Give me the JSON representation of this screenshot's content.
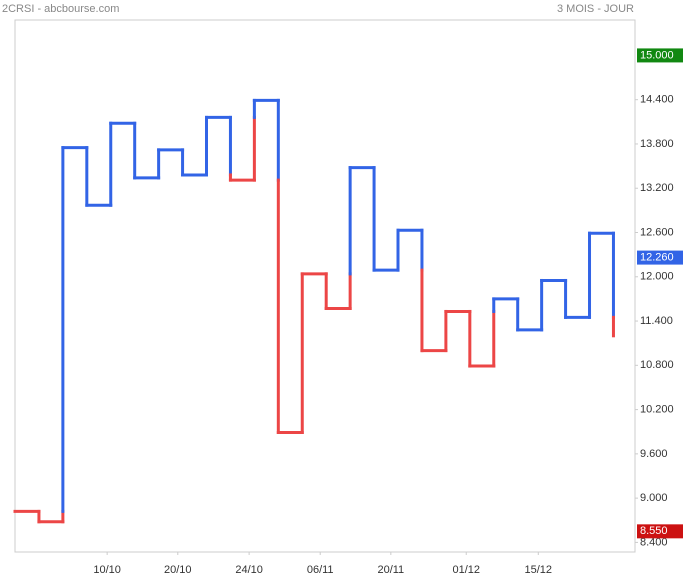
{
  "chart_data": {
    "type": "kagi",
    "title": "2CRSI - abcbourse.com",
    "subtitle": "3 MOIS - JOUR",
    "values": [
      8.82,
      8.68,
      13.75,
      12.97,
      14.08,
      13.34,
      13.72,
      13.38,
      14.16,
      13.31,
      14.39,
      9.89,
      12.04,
      11.57,
      13.48,
      12.09,
      12.63,
      11.0,
      11.53,
      10.79,
      11.7,
      11.28,
      11.95,
      11.45,
      12.59,
      11.2
    ],
    "start_state": "yin",
    "colors": {
      "yang": "#3264e6",
      "yin": "#ec4646"
    },
    "ylim": [
      8.27,
      15.48
    ],
    "yticks": [
      {
        "value": 8.4,
        "label": "8.400"
      },
      {
        "value": 9,
        "label": "9.000"
      },
      {
        "value": 9.6,
        "label": "9.600"
      },
      {
        "value": 10.2,
        "label": "10.200"
      },
      {
        "value": 10.8,
        "label": "10.800"
      },
      {
        "value": 11.4,
        "label": "11.400"
      },
      {
        "value": 12,
        "label": "12.000"
      },
      {
        "value": 12.6,
        "label": "12.600"
      },
      {
        "value": 13.2,
        "label": "13.200"
      },
      {
        "value": 13.8,
        "label": "13.800"
      },
      {
        "value": 14.4,
        "label": "14.400"
      }
    ],
    "xlim": [
      0,
      25.9
    ],
    "xticks": [
      {
        "value": 3.85,
        "label": "10/10"
      },
      {
        "value": 6.8,
        "label": "20/10"
      },
      {
        "value": 9.78,
        "label": "24/10"
      },
      {
        "value": 12.75,
        "label": "06/11"
      },
      {
        "value": 15.7,
        "label": "20/11"
      },
      {
        "value": 18.85,
        "label": "01/12"
      },
      {
        "value": 21.86,
        "label": "15/12"
      }
    ],
    "markers": [
      {
        "value": 15,
        "label": "15.000",
        "color": "#118811"
      },
      {
        "value": 12.26,
        "label": "12.260",
        "color": "#3264e6"
      },
      {
        "value": 8.55,
        "label": "8.550",
        "color": "#cc1111"
      }
    ]
  }
}
